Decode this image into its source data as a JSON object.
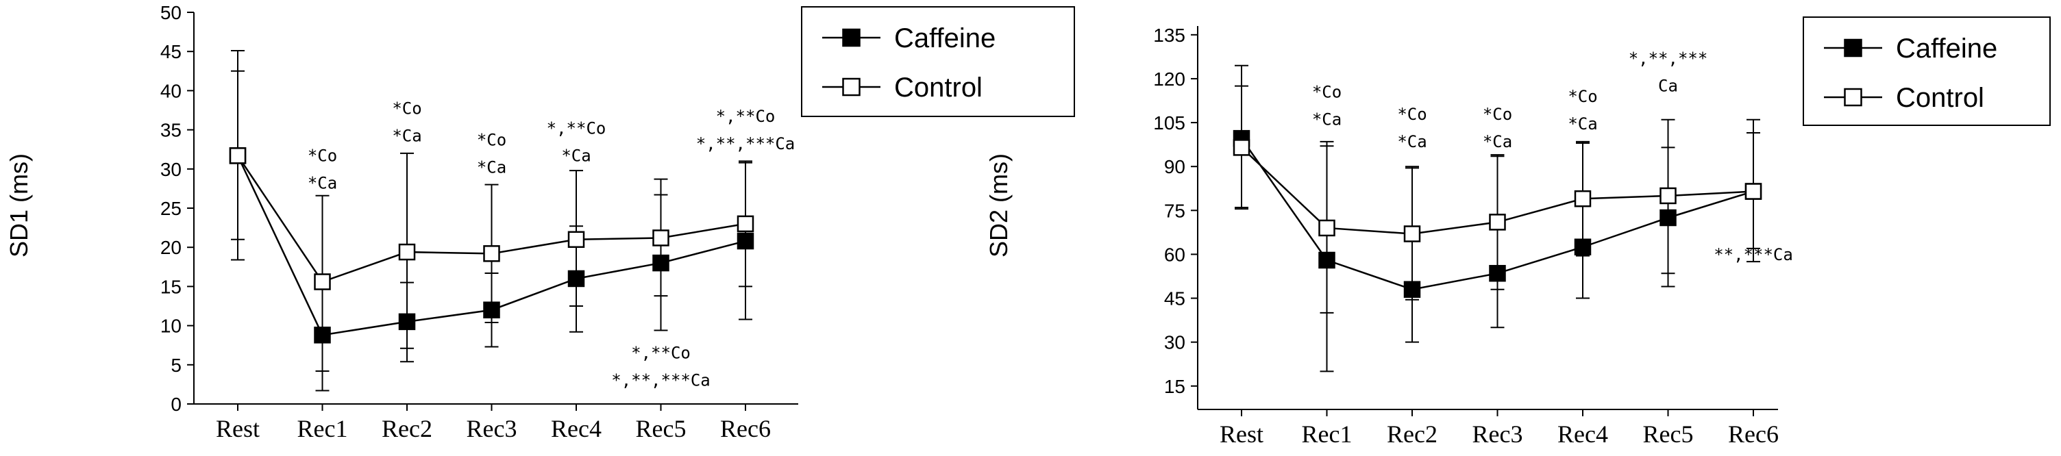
{
  "chart_data": [
    {
      "type": "line",
      "categories": [
        "Rest",
        "Rec1",
        "Rec2",
        "Rec3",
        "Rec4",
        "Rec5",
        "Rec6"
      ],
      "ylabel": "SD1 (ms)",
      "xlabel": "",
      "ylim": [
        0,
        50
      ],
      "yticks": [
        0,
        5,
        10,
        15,
        20,
        25,
        30,
        35,
        40,
        45,
        50
      ],
      "legend_position": "top-right",
      "series": [
        {
          "name": "Caffeine",
          "marker": "filled-square",
          "values": [
            31.7,
            8.8,
            10.5,
            12.0,
            16.0,
            18.0,
            20.8
          ],
          "error_low": [
            18.4,
            1.7,
            5.4,
            7.3,
            9.2,
            9.4,
            10.8
          ],
          "error_high": [
            45.1,
            15.9,
            15.5,
            16.7,
            22.7,
            26.7,
            30.8
          ]
        },
        {
          "name": "Control",
          "marker": "open-square",
          "values": [
            31.7,
            15.6,
            19.4,
            19.2,
            21.0,
            21.2,
            23.0
          ],
          "error_low": [
            21.0,
            4.2,
            7.1,
            10.4,
            12.5,
            13.8,
            15.0
          ],
          "error_high": [
            42.5,
            26.6,
            32.0,
            28.0,
            29.8,
            28.7,
            31.0
          ]
        }
      ],
      "annotations": [
        {
          "category": "Rec1",
          "lines": [
            "*Co",
            "*Ca"
          ],
          "value": 31.0
        },
        {
          "category": "Rec2",
          "lines": [
            "*Co",
            "*Ca"
          ],
          "value": 37.0
        },
        {
          "category": "Rec3",
          "lines": [
            "*Co",
            "*Ca"
          ],
          "value": 33.0
        },
        {
          "category": "Rec4",
          "lines": [
            "*,**Co",
            "*Ca"
          ],
          "value": 34.5
        },
        {
          "category": "Rec5",
          "lines": [
            "*,**Co",
            "*,**,***Ca"
          ],
          "value": 5.8
        },
        {
          "category": "Rec6",
          "lines": [
            "*,**Co",
            "*,**,***Ca"
          ],
          "value": 36.0
        }
      ]
    },
    {
      "type": "line",
      "categories": [
        "Rest",
        "Rec1",
        "Rec2",
        "Rec3",
        "Rec4",
        "Rec5",
        "Rec6"
      ],
      "ylabel": "SD2 (ms)",
      "xlabel": "",
      "ylim": [
        7,
        138
      ],
      "yticks": [
        15,
        30,
        45,
        60,
        75,
        90,
        105,
        120,
        135
      ],
      "legend_position": "top-right",
      "series": [
        {
          "name": "Caffeine",
          "marker": "filled-square",
          "values": [
            99.6,
            58.0,
            48.0,
            53.5,
            62.5,
            72.5,
            81.5
          ],
          "error_low": [
            76.0,
            20.0,
            30.0,
            35.0,
            45.0,
            49.0,
            57.5
          ],
          "error_high": [
            124.5,
            97.0,
            89.5,
            93.5,
            98.0,
            96.5,
            106.0
          ]
        },
        {
          "name": "Control",
          "marker": "open-square",
          "values": [
            96.5,
            69.0,
            67.0,
            71.0,
            79.0,
            80.0,
            81.5
          ],
          "error_low": [
            75.5,
            40.0,
            44.5,
            48.0,
            59.5,
            53.5,
            62.0
          ],
          "error_high": [
            117.5,
            98.5,
            90.0,
            94.0,
            98.5,
            106.0,
            101.5
          ]
        }
      ],
      "annotations": [
        {
          "category": "Rec1",
          "lines": [
            "*Co",
            "*Ca"
          ],
          "value": 113.5
        },
        {
          "category": "Rec2",
          "lines": [
            "*Co",
            "*Ca"
          ],
          "value": 106.0
        },
        {
          "category": "Rec3",
          "lines": [
            "*Co",
            "*Ca"
          ],
          "value": 106.0
        },
        {
          "category": "Rec4",
          "lines": [
            "*Co",
            "*Ca"
          ],
          "value": 112.0
        },
        {
          "category": "Rec5",
          "lines": [
            "*,**,***",
            "Ca"
          ],
          "value": 125.0
        },
        {
          "category": "Rec6",
          "lines": [
            "**,***Ca"
          ],
          "value": 58.0
        }
      ]
    }
  ]
}
